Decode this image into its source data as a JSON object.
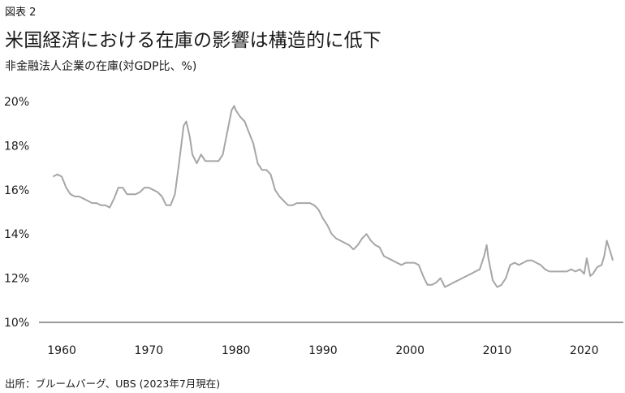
{
  "figure_label": "図表 2",
  "title": "米国経済における在庫の影響は構造的に低下",
  "subtitle": "非金融法人企業の在庫(対GDP比、%)",
  "source": "出所：ブルームバーグ、UBS (2023年7月現在)",
  "colors": {
    "line": "#a6a6a6",
    "axis": "#333333",
    "text": "#1a1a1a"
  },
  "chart_data": {
    "type": "line",
    "title": "米国経済における在庫の影響は構造的に低下",
    "subtitle": "非金融法人企業の在庫(対GDP比、%)",
    "xlabel": "",
    "ylabel": "",
    "xlim": [
      1958.5,
      2024.5
    ],
    "ylim": [
      10,
      20
    ],
    "x_ticks": [
      1960,
      1970,
      1980,
      1990,
      2000,
      2010,
      2020
    ],
    "x_tick_labels": [
      "1960",
      "1970",
      "1980",
      "1990",
      "2000",
      "2010",
      "2020"
    ],
    "y_ticks": [
      10,
      12,
      14,
      16,
      18,
      20
    ],
    "y_tick_labels": [
      "10%",
      "12%",
      "14%",
      "16%",
      "18%",
      "20%"
    ],
    "grid": false,
    "series": [
      {
        "name": "",
        "x": [
          1959.0,
          1959.5,
          1960.0,
          1960.5,
          1961.0,
          1961.5,
          1962.0,
          1962.5,
          1963.0,
          1963.5,
          1964.0,
          1964.5,
          1965.0,
          1965.5,
          1966.0,
          1966.5,
          1967.0,
          1967.5,
          1968.0,
          1968.5,
          1969.0,
          1969.5,
          1970.0,
          1970.5,
          1971.0,
          1971.5,
          1972.0,
          1972.5,
          1973.0,
          1973.5,
          1974.0,
          1974.3,
          1974.7,
          1975.0,
          1975.5,
          1976.0,
          1976.5,
          1977.0,
          1977.5,
          1978.0,
          1978.5,
          1979.0,
          1979.5,
          1979.8,
          1980.0,
          1980.5,
          1981.0,
          1981.5,
          1982.0,
          1982.5,
          1983.0,
          1983.5,
          1984.0,
          1984.5,
          1985.0,
          1985.5,
          1986.0,
          1986.5,
          1987.0,
          1987.5,
          1988.0,
          1988.5,
          1989.0,
          1989.5,
          1990.0,
          1990.5,
          1991.0,
          1991.5,
          1992.0,
          1992.5,
          1993.0,
          1993.5,
          1994.0,
          1994.5,
          1995.0,
          1995.5,
          1996.0,
          1996.5,
          1997.0,
          1997.5,
          1998.0,
          1998.5,
          1999.0,
          1999.5,
          2000.0,
          2000.5,
          2001.0,
          2001.5,
          2002.0,
          2002.5,
          2003.0,
          2003.5,
          2004.0,
          2004.5,
          2005.0,
          2005.5,
          2006.0,
          2006.5,
          2007.0,
          2007.5,
          2008.0,
          2008.5,
          2008.8,
          2009.0,
          2009.5,
          2010.0,
          2010.5,
          2011.0,
          2011.5,
          2012.0,
          2012.5,
          2013.0,
          2013.5,
          2014.0,
          2014.5,
          2015.0,
          2015.5,
          2016.0,
          2016.5,
          2017.0,
          2017.5,
          2018.0,
          2018.5,
          2019.0,
          2019.5,
          2020.0,
          2020.3,
          2020.7,
          2021.0,
          2021.5,
          2022.0,
          2022.3,
          2022.6,
          2023.0,
          2023.3
        ],
        "values": [
          16.6,
          16.7,
          16.6,
          16.1,
          15.8,
          15.7,
          15.7,
          15.6,
          15.5,
          15.4,
          15.4,
          15.3,
          15.3,
          15.2,
          15.6,
          16.1,
          16.1,
          15.8,
          15.8,
          15.8,
          15.9,
          16.1,
          16.1,
          16.0,
          15.9,
          15.7,
          15.3,
          15.3,
          15.8,
          17.3,
          18.9,
          19.1,
          18.4,
          17.6,
          17.2,
          17.6,
          17.3,
          17.3,
          17.3,
          17.3,
          17.6,
          18.6,
          19.6,
          19.8,
          19.6,
          19.3,
          19.1,
          18.6,
          18.1,
          17.2,
          16.9,
          16.9,
          16.7,
          16.0,
          15.7,
          15.5,
          15.3,
          15.3,
          15.4,
          15.4,
          15.4,
          15.4,
          15.3,
          15.1,
          14.7,
          14.4,
          14.0,
          13.8,
          13.7,
          13.6,
          13.5,
          13.3,
          13.5,
          13.8,
          14.0,
          13.7,
          13.5,
          13.4,
          13.0,
          12.9,
          12.8,
          12.7,
          12.6,
          12.7,
          12.7,
          12.7,
          12.6,
          12.1,
          11.7,
          11.7,
          11.8,
          12.0,
          11.6,
          11.7,
          11.8,
          11.9,
          12.0,
          12.1,
          12.2,
          12.3,
          12.4,
          13.0,
          13.5,
          12.9,
          11.9,
          11.6,
          11.7,
          12.0,
          12.6,
          12.7,
          12.6,
          12.7,
          12.8,
          12.8,
          12.7,
          12.6,
          12.4,
          12.3,
          12.3,
          12.3,
          12.3,
          12.3,
          12.4,
          12.3,
          12.4,
          12.2,
          12.9,
          12.1,
          12.2,
          12.5,
          12.6,
          13.0,
          13.7,
          13.2,
          12.8
        ]
      }
    ]
  }
}
